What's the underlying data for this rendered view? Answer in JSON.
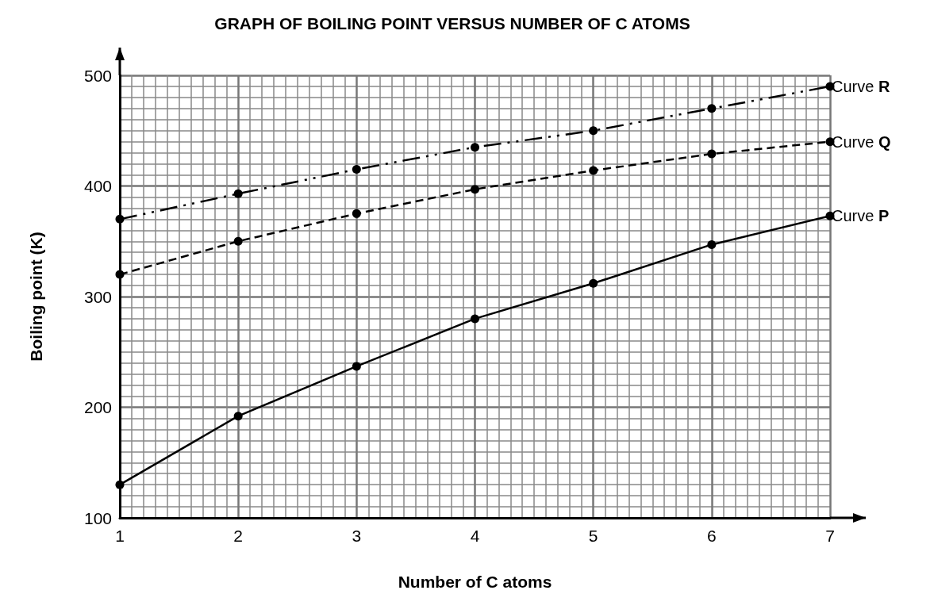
{
  "chart_data": {
    "type": "line",
    "title": "GRAPH OF BOILING POINT VERSUS NUMBER OF C ATOMS",
    "xlabel": "Number of C atoms",
    "ylabel": "Boiling point (K)",
    "x": [
      1,
      2,
      3,
      4,
      5,
      6,
      7
    ],
    "series": [
      {
        "name": "Curve P",
        "color": "#000000",
        "line_style": "solid",
        "values": [
          130,
          192,
          237,
          280,
          312,
          347,
          373
        ]
      },
      {
        "name": "Curve Q",
        "color": "#000000",
        "line_style": "dashed",
        "values": [
          320,
          350,
          375,
          397,
          414,
          429,
          440
        ]
      },
      {
        "name": "Curve R",
        "color": "#000000",
        "line_style": "dashdot",
        "values": [
          370,
          393,
          415,
          435,
          450,
          470,
          490
        ]
      }
    ],
    "xlim": [
      1,
      7
    ],
    "xticks": [
      1,
      2,
      3,
      4,
      5,
      6,
      7
    ],
    "ylim": [
      100,
      500
    ],
    "yticks": [
      100,
      200,
      300,
      400,
      500
    ],
    "grid": true,
    "legend": false,
    "marker": "circle"
  }
}
